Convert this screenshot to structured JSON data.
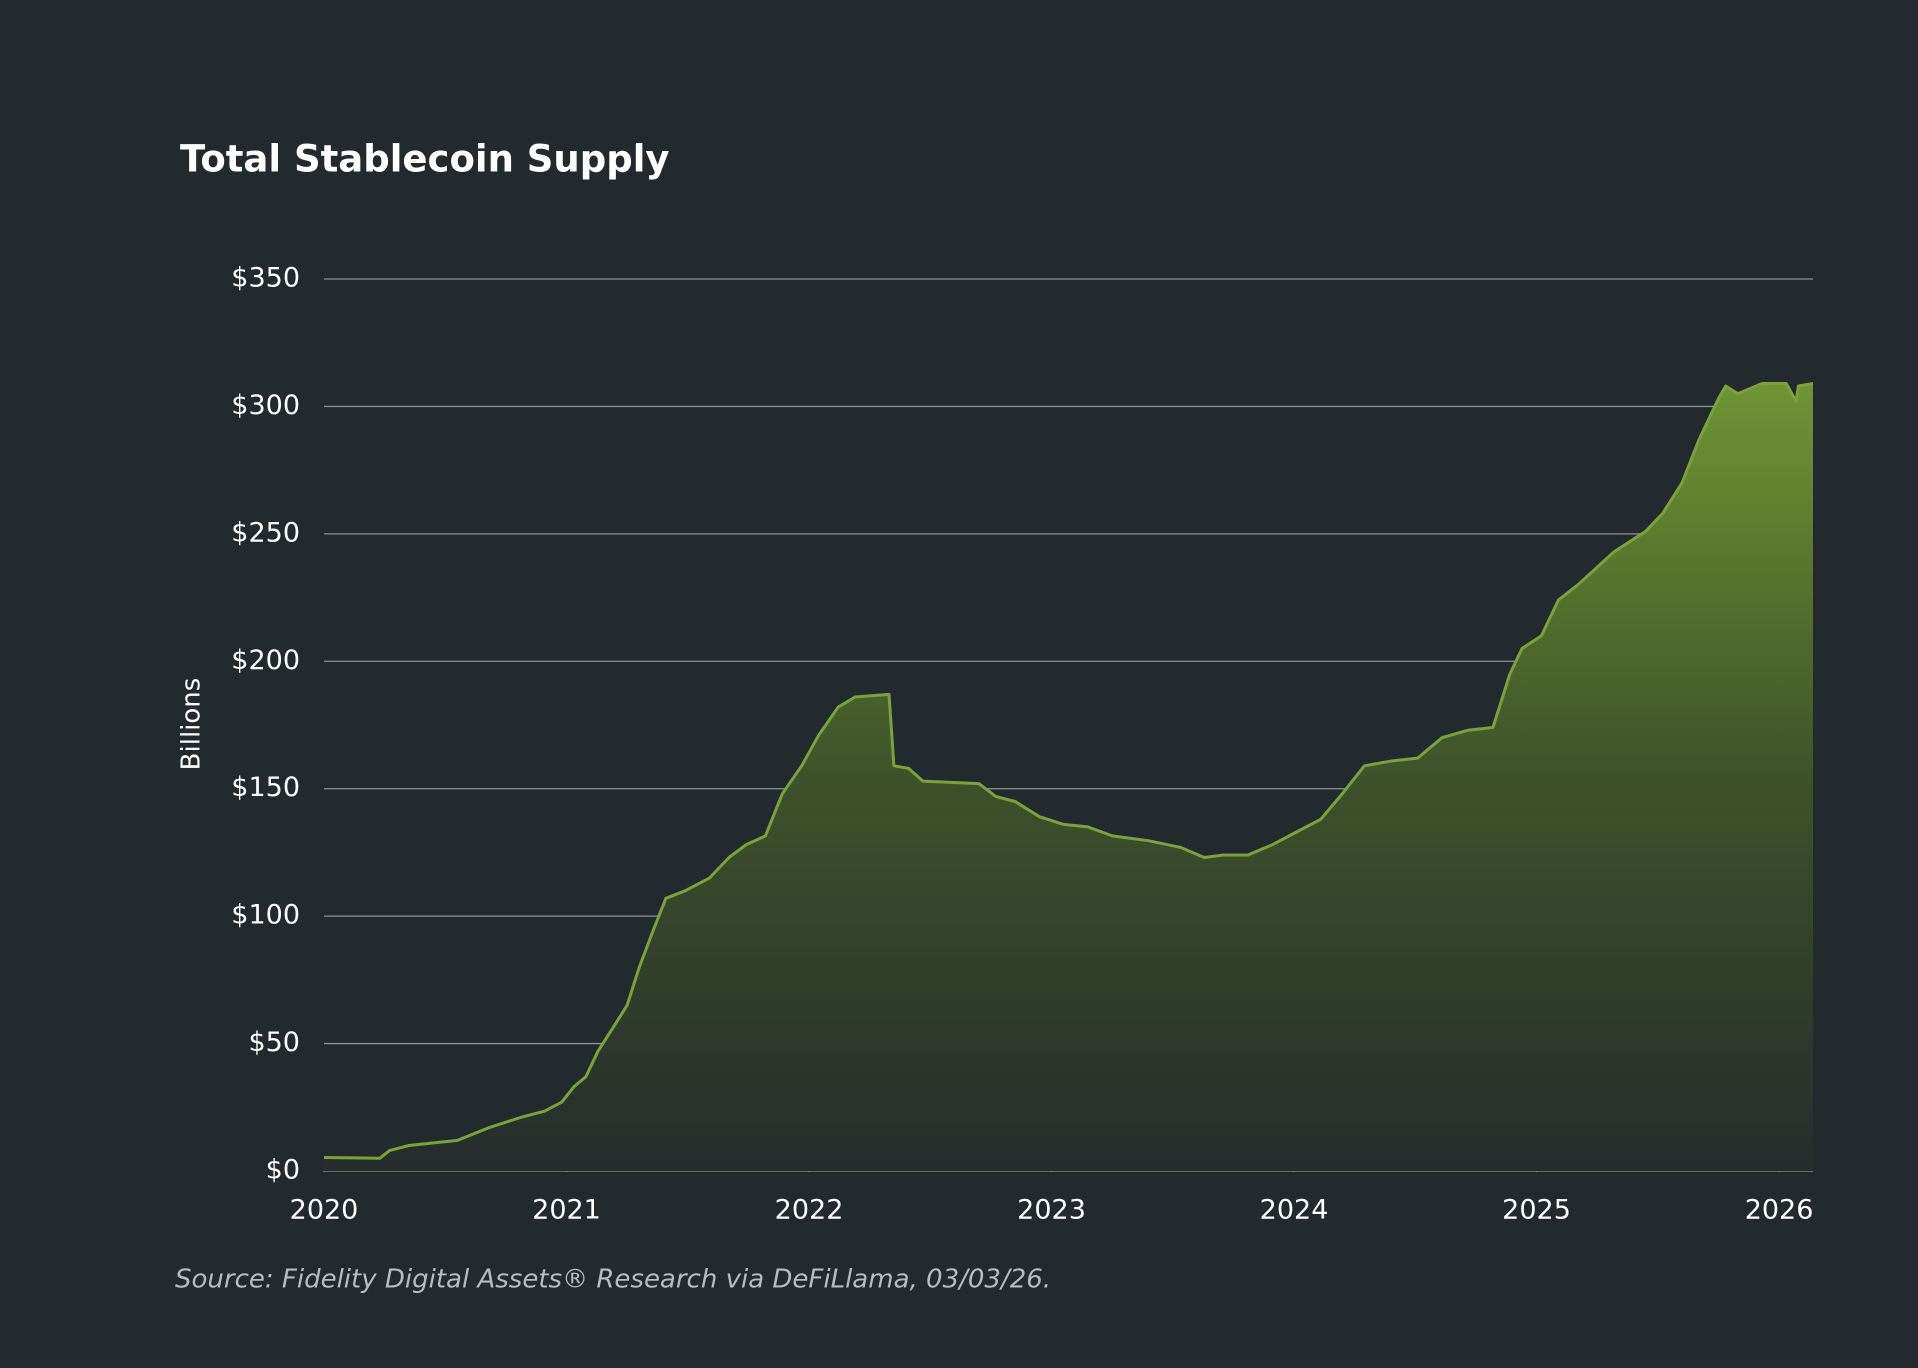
{
  "chart_data": {
    "type": "area",
    "title": "Total Stablecoin Supply",
    "ylabel": "Billions",
    "source": "Source: Fidelity Digital Assets® Research via DeFiLlama, 03/03/26.",
    "color": "#7aa23c",
    "grid": true,
    "xlim": [
      2020,
      2026.14
    ],
    "xticks": [
      2020,
      2021,
      2022,
      2023,
      2024,
      2025,
      2026
    ],
    "ylim": [
      0,
      350
    ],
    "yticks": [
      {
        "value": 0,
        "label": "$0"
      },
      {
        "value": 50,
        "label": "$50"
      },
      {
        "value": 100,
        "label": "$100"
      },
      {
        "value": 150,
        "label": "$150"
      },
      {
        "value": 200,
        "label": "$200"
      },
      {
        "value": 250,
        "label": "$250"
      },
      {
        "value": 300,
        "label": "$300"
      },
      {
        "value": 350,
        "label": "$350"
      }
    ],
    "x": [
      2020,
      2020.23,
      2020.27,
      2020.35,
      2020.55,
      2020.68,
      2020.81,
      2020.91,
      2020.98,
      2021.03,
      2021.08,
      2021.13,
      2021.19,
      2021.25,
      2021.3,
      2021.36,
      2021.41,
      2021.49,
      2021.59,
      2021.67,
      2021.74,
      2021.82,
      2021.89,
      2021.97,
      2022.04,
      2022.12,
      2022.19,
      2022.33,
      2022.35,
      2022.41,
      2022.47,
      2022.7,
      2022.77,
      2022.85,
      2022.95,
      2023.05,
      2023.15,
      2023.25,
      2023.4,
      2023.53,
      2023.63,
      2023.71,
      2023.81,
      2023.91,
      2024.01,
      2024.11,
      2024.19,
      2024.29,
      2024.41,
      2024.51,
      2024.61,
      2024.72,
      2024.82,
      2024.89,
      2024.94,
      2025.02,
      2025.09,
      2025.17,
      2025.24,
      2025.32,
      2025.45,
      2025.52,
      2025.6,
      2025.67,
      2025.75,
      2025.78,
      2025.83,
      2025.93,
      2026.03,
      2026.07,
      2026.08,
      2026.14
    ],
    "values": [
      5.3,
      5,
      8,
      10,
      12,
      17,
      21,
      23.5,
      27,
      33,
      37,
      47,
      56,
      65,
      80,
      95,
      107,
      110,
      115,
      123,
      128,
      131.5,
      148,
      159,
      171,
      182,
      186,
      187,
      159,
      158,
      153,
      152,
      147,
      145,
      139,
      136,
      135,
      131.5,
      129.6,
      127,
      123,
      124,
      124,
      128,
      133,
      138,
      147,
      159,
      161,
      162,
      170,
      173,
      174,
      195,
      205,
      210,
      224,
      230,
      236,
      243,
      251,
      258,
      270,
      287,
      303,
      308,
      305,
      309,
      309,
      302,
      308,
      309
    ]
  }
}
